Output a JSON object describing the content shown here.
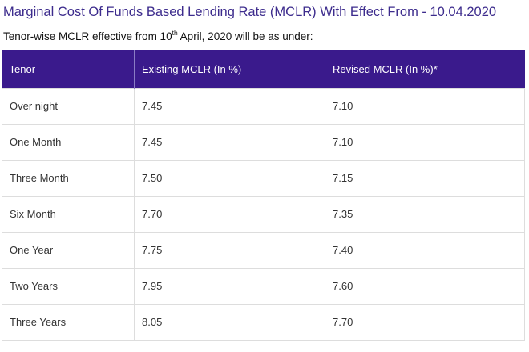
{
  "heading": "Marginal Cost Of Funds Based Lending Rate (MCLR) With Effect From - 10.04.2020",
  "subheading": {
    "prefix": "Tenor-wise MCLR effective from 10",
    "superscript": "th",
    "suffix": " April, 2020 will be as under:"
  },
  "table": {
    "headers": [
      "Tenor",
      "Existing MCLR (In %)",
      "Revised MCLR (In %)*"
    ],
    "rows": [
      [
        "Over night",
        "7.45",
        "7.10"
      ],
      [
        "One Month",
        "7.45",
        "7.10"
      ],
      [
        "Three Month",
        "7.50",
        "7.15"
      ],
      [
        "Six Month",
        "7.70",
        "7.35"
      ],
      [
        "One Year",
        "7.75",
        "7.40"
      ],
      [
        "Two Years",
        "7.95",
        "7.60"
      ],
      [
        "Three Years",
        "8.05",
        "7.70"
      ]
    ]
  },
  "colors": {
    "heading_text": "#3d2c8d",
    "header_background": "#3a1a8c",
    "header_text": "#ffffff",
    "cell_border": "#dddddd"
  }
}
